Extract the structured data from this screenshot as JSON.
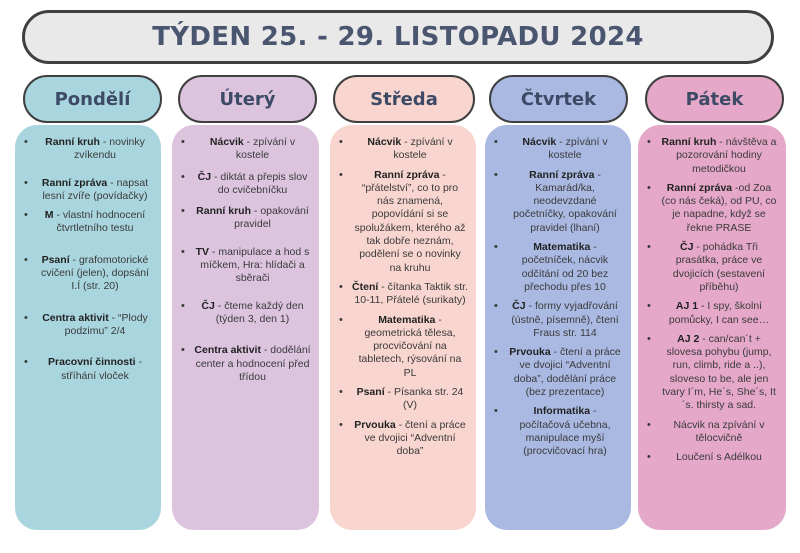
{
  "title": "TÝDEN 25. - 29. LISTOPADU 2024",
  "days": [
    {
      "name": "Pondělí",
      "items": [
        {
          "bold": "Ranní kruh",
          "text": " - novinky zvíkendu"
        },
        {
          "bold": "Ranní zpráva",
          "text": " - napsat lesní zvíře (povídačky)"
        },
        {
          "bold": "M",
          "text": " - vlastní hodnocení čtvrtletního testu"
        },
        {
          "bold": "Psaní",
          "text": " - grafomotorické cvičení (jelen), dopsání I.Í (str. 20)"
        },
        {
          "bold": "Centra aktivit",
          "text": " - “Plody podzimu” 2/4"
        },
        {
          "bold": "Pracovní činnosti",
          "text": " - stříhání vloček"
        }
      ]
    },
    {
      "name": "Úterý",
      "items": [
        {
          "bold": "Nácvik",
          "text": " - zpívání v kostele"
        },
        {
          "bold": "ČJ",
          "text": " - diktát a přepis slov do cvičebníčku"
        },
        {
          "bold": "Ranní kruh",
          "text": " - opakování pravidel"
        },
        {
          "bold": "TV",
          "text": " - manipulace a hod s míčkem, Hra: hlídači a sběrači"
        },
        {
          "bold": "ČJ",
          "text": " - čteme každý den (týden 3, den 1)"
        },
        {
          "bold": "Centra aktivit",
          "text": " - dodělání center a hodnocení před třídou"
        }
      ]
    },
    {
      "name": "Středa",
      "items": [
        {
          "bold": "Nácvik",
          "text": " - zpívání v kostele"
        },
        {
          "bold": "Ranní zpráva",
          "text": " - “přátelství”, co to pro nás znamená, popovídání si se spolužákem, kterého až tak dobře neznám, podělení se o novinky na kruhu"
        },
        {
          "bold": "Čtení",
          "text": " - čítanka Taktik str. 10-11, Přátelé (surikaty)"
        },
        {
          "bold": "Matematika",
          "text": " - geometrická tělesa, procvičování na tabletech, rýsování na PL"
        },
        {
          "bold": "Psaní",
          "text": " - Písanka str. 24 (V)"
        },
        {
          "bold": "Prvouka",
          "text": " - čtení a práce ve dvojici “Adventní doba”"
        }
      ]
    },
    {
      "name": "Čtvrtek",
      "items": [
        {
          "bold": "Nácvik",
          "text": " - zpívání v kostele"
        },
        {
          "bold": "Ranní zpráva",
          "text": " - Kamarád/ka, neodevzdané početníčky, opakování pravidel (lhaní)"
        },
        {
          "bold": "Matematika",
          "text": " - početníček, nácvik odčítání od 20 bez přechodu přes 10"
        },
        {
          "bold": "ČJ",
          "text": " - formy vyjadřování (ústně, písemně), čtení Fraus str. 114"
        },
        {
          "bold": "Prvouka",
          "text": " - čtení a práce ve dvojici “Adventní doba”, dodělání práce (bez prezentace)"
        },
        {
          "bold": "Informatika",
          "text": " - počítačová učebna, manipulace myší (procvičovací hra)"
        }
      ]
    },
    {
      "name": "Pátek",
      "items": [
        {
          "bold": "Ranní kruh",
          "text": " - návštěva a pozorování hodiny metodičkou"
        },
        {
          "bold": "Ranní zpráva",
          "text": " -od Zoa (co nás čeká), od PU, co je napadne, když se řekne PRASE"
        },
        {
          "bold": "ČJ",
          "text": " - pohádka Tři prasátka, práce ve dvojicích (sestavení příběhu)"
        },
        {
          "bold": "AJ 1",
          "text": " - I spy, školní pomůcky, I can see…"
        },
        {
          "bold": "AJ 2",
          "text": " - can/can´t + slovesa pohybu (jump, run, climb, ride a ..), sloveso to be, ale jen tvary I´m, He´s, She´s, It´s. thirsty a sad."
        },
        {
          "bold": "",
          "text": "Nácvik na zpívání v tělocvičně"
        },
        {
          "bold": "",
          "text": "Loučení s Adélkou"
        }
      ]
    }
  ]
}
